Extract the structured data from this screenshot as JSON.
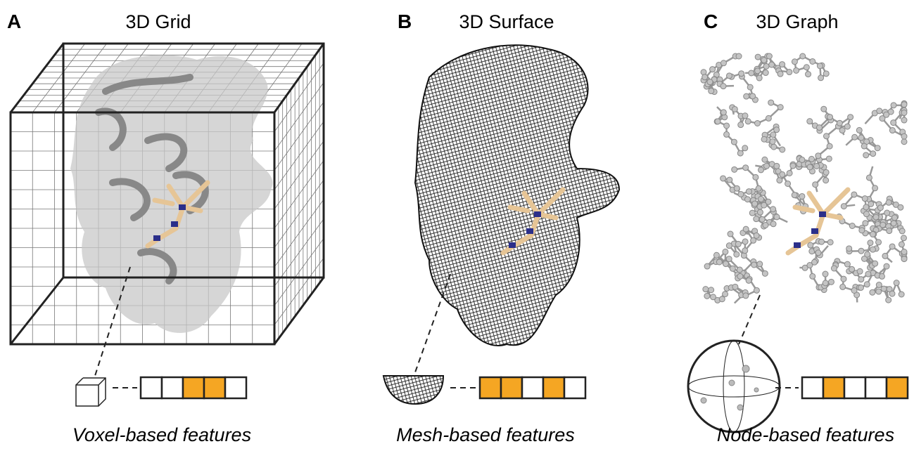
{
  "panels": [
    {
      "letter": "A",
      "title": "3D Grid",
      "caption": "Voxel-based features"
    },
    {
      "letter": "B",
      "title": "3D Surface",
      "caption": "Mesh-based features"
    },
    {
      "letter": "C",
      "title": "3D Graph",
      "caption": "Node-based features"
    }
  ]
}
